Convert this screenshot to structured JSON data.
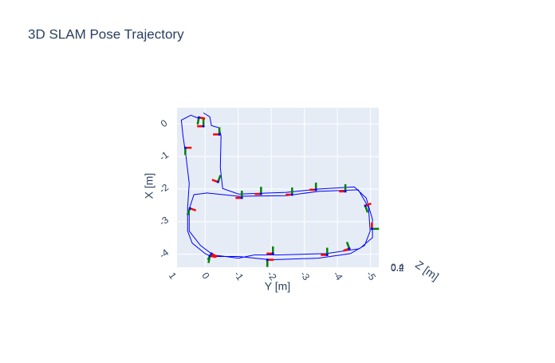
{
  "chart_data": {
    "type": "line3d",
    "title": "3D SLAM Pose Trajectory",
    "xlabel": "Y [m]",
    "ylabel": "X [m]",
    "zlabel": "Z [m]",
    "xlim": [
      0.85,
      -5.25
    ],
    "ylim": [
      0.5,
      -4.4
    ],
    "xticks": [
      1,
      0,
      -1,
      -2,
      -3,
      -4,
      -5
    ],
    "yticks": [
      0,
      -1,
      -2,
      -3,
      -4
    ],
    "zticks": [
      0.2,
      0.4
    ],
    "grid": true,
    "series": [
      {
        "color": "#0000ff",
        "x": [
          0.05,
          -0.14,
          -0.19,
          -0.43,
          -0.48,
          -0.46,
          -0.53,
          -1.01,
          -2.46,
          -3.42,
          -4.51,
          -4.87,
          -5.06,
          -5.06,
          -4.67,
          -3.66,
          -2.22,
          -1.49,
          -1.01,
          -0.24,
          0.14,
          0.48,
          0.48,
          0.34,
          -0.05,
          -1.01,
          -2.46,
          -3.42,
          -4.63,
          -4.94,
          -4.99,
          -4.82,
          -4.39,
          -3.42,
          -1.98,
          -1.01,
          -0.19,
          0,
          0.39,
          0.53,
          0.53,
          0.48,
          0.58,
          0.67,
          0.72,
          0.43,
          0.19
        ],
        "values": [
          0.34,
          0.22,
          -0.05,
          -0.12,
          -0.37,
          -1.34,
          -1.98,
          -2.15,
          -2.1,
          -2.0,
          -1.93,
          -2.27,
          -2.93,
          -3.49,
          -3.83,
          -3.98,
          -4.02,
          -4.02,
          -4.12,
          -4.02,
          -3.73,
          -3.29,
          -2.61,
          -2.17,
          -2.12,
          -2.22,
          -2.2,
          -2.07,
          -2.02,
          -2.56,
          -3.29,
          -3.73,
          -3.98,
          -4.12,
          -4.17,
          -4.07,
          -4.07,
          -3.98,
          -3.66,
          -3.29,
          -2.56,
          -1.83,
          -0.98,
          -0.37,
          0.12,
          0.27,
          0.17
        ]
      }
    ],
    "poses": {
      "x": [
        0.19,
        0.05,
        -0.43,
        0.6,
        -0.39,
        -1.11,
        -1.69,
        -2.63,
        -3.35,
        -4.24,
        -4.84,
        -5.04,
        -4.36,
        -3.69,
        -2.05,
        -1.88,
        -0.19,
        -0.14,
        0.46
      ],
      "values": [
        0.2,
        -0.07,
        -0.32,
        -0.73,
        -1.78,
        -2.27,
        -2.15,
        -2.17,
        -2.02,
        -2.07,
        -2.51,
        -3.22,
        -3.83,
        -4.02,
        -3.98,
        -4.17,
        -3.98,
        -4.05,
        -2.59
      ],
      "headings": [
        10,
        180,
        180,
        0,
        200,
        180,
        180,
        180,
        180,
        180,
        340,
        270,
        160,
        180,
        180,
        0,
        30,
        10,
        20
      ]
    }
  }
}
